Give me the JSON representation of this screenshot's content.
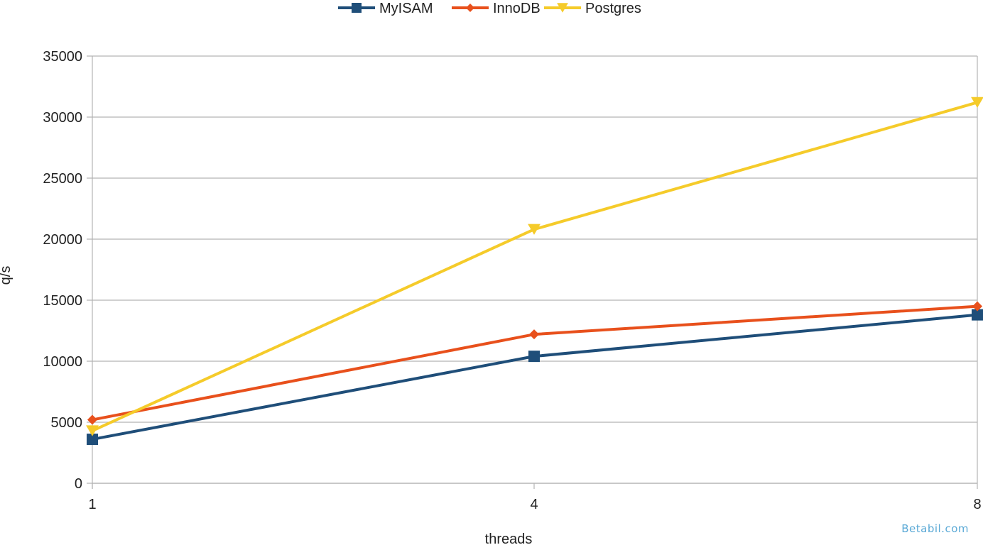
{
  "chart_data": {
    "type": "line",
    "title": "",
    "xlabel": "threads",
    "ylabel": "q/s",
    "categories": [
      "1",
      "4",
      "8"
    ],
    "ylim": [
      0,
      35000
    ],
    "yticks": [
      0,
      5000,
      10000,
      15000,
      20000,
      25000,
      30000,
      35000
    ],
    "grid": true,
    "legend_position": "top-center",
    "series": [
      {
        "name": "MyISAM",
        "values": [
          3600,
          10400,
          13800
        ],
        "color": "#1f4e79",
        "marker": "square"
      },
      {
        "name": "InnoDB",
        "values": [
          5200,
          12200,
          14500
        ],
        "color": "#e8501c",
        "marker": "diamond"
      },
      {
        "name": "Postgres",
        "values": [
          4300,
          20800,
          31200
        ],
        "color": "#f5cb2a",
        "marker": "triangle-down"
      }
    ]
  },
  "watermark": "Betabil.com"
}
